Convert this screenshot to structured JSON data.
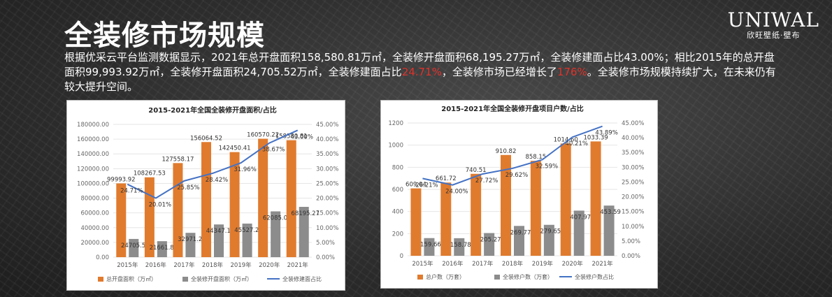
{
  "header": {
    "title": "全装修市场规模",
    "logo_main": "UNIWAL",
    "logo_sub": "欣旺壁纸·壁布"
  },
  "description": {
    "part1": "根据优采云平台监测数据显示，2021年总开盘面积158,580.81万㎡，全装修开盘面积68,195.27万㎡，全装修建面占比43.00%；相比2015年的总开盘面积99,993.92万㎡，全装修开盘面积24,705.52万㎡，全装修建面占比",
    "red1": "24.71%",
    "part2": "，全装修市场已经增长了",
    "red2": "176%",
    "part3": "。全装修市场规模持续扩大，在未来仍有较大提升空间。"
  },
  "colors": {
    "orange": "#e07b2e",
    "gray": "#8c8c8c",
    "blue": "#4472c4"
  },
  "chart_data": [
    {
      "type": "bar",
      "title": "2015-2021年全国全装修开盘面积/占比",
      "categories": [
        "2015年",
        "2016年",
        "2017年",
        "2018年",
        "2019年",
        "2020年",
        "2021年"
      ],
      "series": [
        {
          "name": "总开盘面积（万㎡）",
          "type": "bar",
          "axis": "left",
          "values": [
            99993.92,
            108267.53,
            127558.17,
            156064.52,
            142450.41,
            160570.22,
            158580.81
          ]
        },
        {
          "name": "全装修开盘面积（万㎡）",
          "type": "bar",
          "axis": "left",
          "values": [
            24705.52,
            21661.88,
            32971.23,
            44347.19,
            45527.24,
            62085.07,
            68195.27
          ]
        },
        {
          "name": "全装修建面占比",
          "type": "line",
          "axis": "right",
          "values": [
            24.71,
            20.01,
            25.85,
            28.42,
            31.96,
            38.67,
            43.0
          ],
          "labels": [
            "24.71%",
            "20.01%",
            "25.85%",
            "28.42%",
            "31.96%",
            "38.67%",
            "43.00%"
          ]
        }
      ],
      "y_left": {
        "min": 0,
        "max": 180000,
        "step": 20000,
        "ticks": [
          "0.00",
          "20000.00",
          "40000.00",
          "60000.00",
          "80000.00",
          "100000.00",
          "120000.00",
          "140000.00",
          "160000.00",
          "180000.00"
        ]
      },
      "y_right": {
        "min": 0,
        "max": 45,
        "step": 5,
        "ticks": [
          "0.00%",
          "5.00%",
          "10.00%",
          "15.00%",
          "20.00%",
          "25.00%",
          "30.00%",
          "35.00%",
          "40.00%",
          "45.00%"
        ]
      },
      "legend_position": "bottom"
    },
    {
      "type": "bar",
      "title": "2015-2021年全国全装修开盘项目户数/占比",
      "categories": [
        "2015年",
        "2016年",
        "2017年",
        "2018年",
        "2019年",
        "2020年",
        "2021年"
      ],
      "series": [
        {
          "name": "总户数（万套）",
          "type": "bar",
          "axis": "left",
          "values": [
            609.04,
            661.72,
            740.51,
            910.82,
            858.15,
            1014.6,
            1033.39
          ]
        },
        {
          "name": "全装修户数（万套）",
          "type": "bar",
          "axis": "left",
          "values": [
            159.66,
            158.78,
            205.27,
            269.77,
            279.65,
            407.97,
            453.59
          ]
        },
        {
          "name": "全装修户数占比",
          "type": "line",
          "axis": "right",
          "values": [
            26.21,
            24.0,
            27.72,
            29.62,
            32.59,
            40.21,
            43.89
          ],
          "labels": [
            "26.21%",
            "24.00%",
            "27.72%",
            "29.62%",
            "32.59%",
            "40.21%",
            "43.89%"
          ]
        }
      ],
      "bar_labels": [
        [
          "609.04",
          "661.72",
          "740.51",
          "910.82",
          "858.15",
          "1014.60",
          "1033.39"
        ],
        [
          "159.66",
          "158.78",
          "205.27",
          "269.77",
          "279.65",
          "407.97",
          "453.59"
        ]
      ],
      "y_left": {
        "min": 0,
        "max": 1200,
        "step": 200,
        "ticks": [
          "0",
          "200",
          "400",
          "600",
          "800",
          "1000",
          "1200"
        ]
      },
      "y_right": {
        "min": 0,
        "max": 45,
        "step": 5,
        "ticks": [
          "0.00%",
          "5.00%",
          "10.00%",
          "15.00%",
          "20.00%",
          "25.00%",
          "30.00%",
          "35.00%",
          "40.00%",
          "45.00%"
        ]
      },
      "legend_position": "bottom"
    }
  ]
}
